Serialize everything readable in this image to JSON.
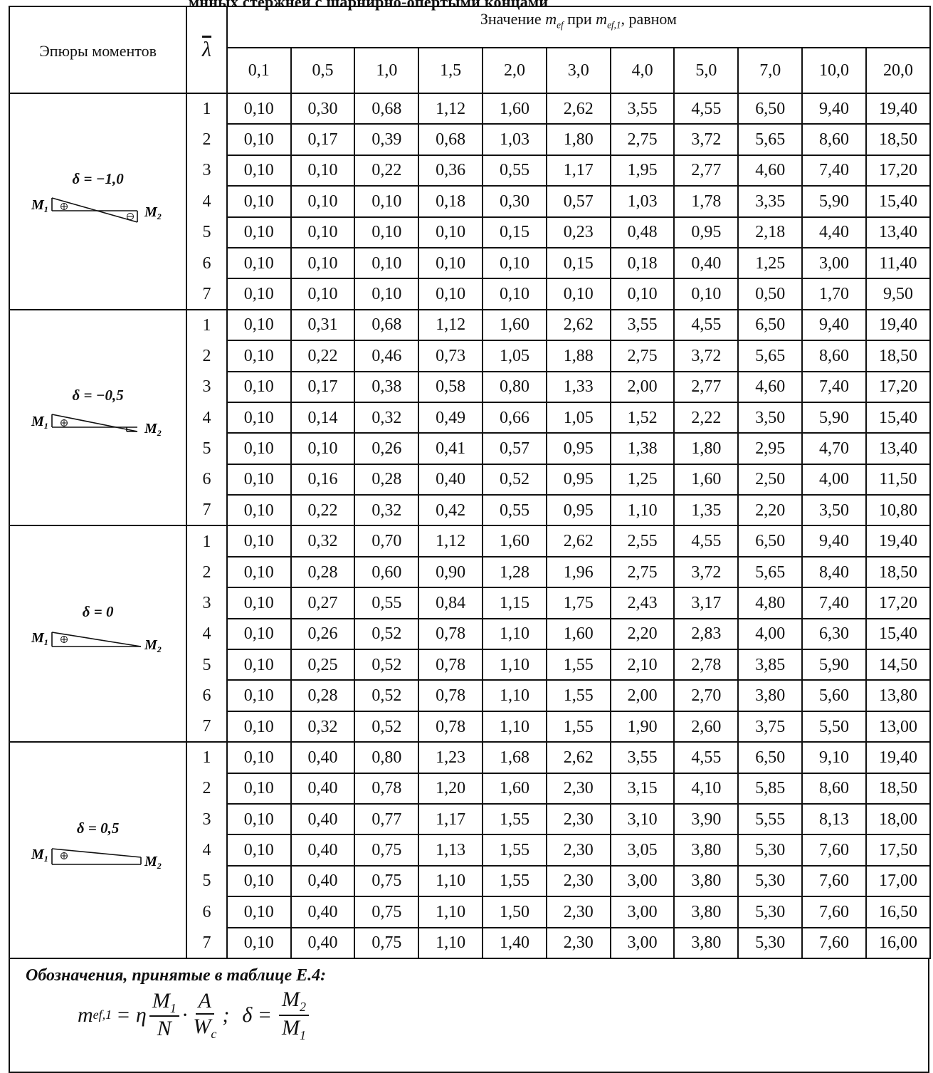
{
  "caption_fragment": "мнных  стержнеи с шарнирно-опертыми концами",
  "header": {
    "col_diagram": "Эпюры моментов",
    "col_lambda": "λ",
    "col_group_prefix": "Значение ",
    "col_group_mef": "m",
    "col_group_mef_sub": "ef",
    "col_group_mid": " при ",
    "col_group_mef1": "m",
    "col_group_mef1_sub": "ef,1",
    "col_group_suffix": ", равном",
    "mef1_values": [
      "0,1",
      "0,5",
      "1,0",
      "1,5",
      "2,0",
      "3,0",
      "4,0",
      "5,0",
      "7,0",
      "10,0",
      "20,0"
    ]
  },
  "groups": [
    {
      "delta_label": "δ = −1,0",
      "m1": "M",
      "m1_sub": "1",
      "m2": "M",
      "m2_sub": "2",
      "diagram_type": "double-triangle",
      "rows": [
        [
          "1",
          "0,10",
          "0,30",
          "0,68",
          "1,12",
          "1,60",
          "2,62",
          "3,55",
          "4,55",
          "6,50",
          "9,40",
          "19,40"
        ],
        [
          "2",
          "0,10",
          "0,17",
          "0,39",
          "0,68",
          "1,03",
          "1,80",
          "2,75",
          "3,72",
          "5,65",
          "8,60",
          "18,50"
        ],
        [
          "3",
          "0,10",
          "0,10",
          "0,22",
          "0,36",
          "0,55",
          "1,17",
          "1,95",
          "2,77",
          "4,60",
          "7,40",
          "17,20"
        ],
        [
          "4",
          "0,10",
          "0,10",
          "0,10",
          "0,18",
          "0,30",
          "0,57",
          "1,03",
          "1,78",
          "3,35",
          "5,90",
          "15,40"
        ],
        [
          "5",
          "0,10",
          "0,10",
          "0,10",
          "0,10",
          "0,15",
          "0,23",
          "0,48",
          "0,95",
          "2,18",
          "4,40",
          "13,40"
        ],
        [
          "6",
          "0,10",
          "0,10",
          "0,10",
          "0,10",
          "0,10",
          "0,15",
          "0,18",
          "0,40",
          "1,25",
          "3,00",
          "11,40"
        ],
        [
          "7",
          "0,10",
          "0,10",
          "0,10",
          "0,10",
          "0,10",
          "0,10",
          "0,10",
          "0,10",
          "0,50",
          "1,70",
          "9,50"
        ]
      ]
    },
    {
      "delta_label": "δ = −0,5",
      "m1": "M",
      "m1_sub": "1",
      "m2": "M",
      "m2_sub": "2",
      "diagram_type": "small-negative",
      "rows": [
        [
          "1",
          "0,10",
          "0,31",
          "0,68",
          "1,12",
          "1,60",
          "2,62",
          "3,55",
          "4,55",
          "6,50",
          "9,40",
          "19,40"
        ],
        [
          "2",
          "0,10",
          "0,22",
          "0,46",
          "0,73",
          "1,05",
          "1,88",
          "2,75",
          "3,72",
          "5,65",
          "8,60",
          "18,50"
        ],
        [
          "3",
          "0,10",
          "0,17",
          "0,38",
          "0,58",
          "0,80",
          "1,33",
          "2,00",
          "2,77",
          "4,60",
          "7,40",
          "17,20"
        ],
        [
          "4",
          "0,10",
          "0,14",
          "0,32",
          "0,49",
          "0,66",
          "1,05",
          "1,52",
          "2,22",
          "3,50",
          "5,90",
          "15,40"
        ],
        [
          "5",
          "0,10",
          "0,10",
          "0,26",
          "0,41",
          "0,57",
          "0,95",
          "1,38",
          "1,80",
          "2,95",
          "4,70",
          "13,40"
        ],
        [
          "6",
          "0,10",
          "0,16",
          "0,28",
          "0,40",
          "0,52",
          "0,95",
          "1,25",
          "1,60",
          "2,50",
          "4,00",
          "11,50"
        ],
        [
          "7",
          "0,10",
          "0,22",
          "0,32",
          "0,42",
          "0,55",
          "0,95",
          "1,10",
          "1,35",
          "2,20",
          "3,50",
          "10,80"
        ]
      ]
    },
    {
      "delta_label": "δ = 0",
      "m1": "M",
      "m1_sub": "1",
      "m2": "M",
      "m2_sub": "2",
      "diagram_type": "triangle",
      "rows": [
        [
          "1",
          "0,10",
          "0,32",
          "0,70",
          "1,12",
          "1,60",
          "2,62",
          "2,55",
          "4,55",
          "6,50",
          "9,40",
          "19,40"
        ],
        [
          "2",
          "0,10",
          "0,28",
          "0,60",
          "0,90",
          "1,28",
          "1,96",
          "2,75",
          "3,72",
          "5,65",
          "8,40",
          "18,50"
        ],
        [
          "3",
          "0,10",
          "0,27",
          "0,55",
          "0,84",
          "1,15",
          "1,75",
          "2,43",
          "3,17",
          "4,80",
          "7,40",
          "17,20"
        ],
        [
          "4",
          "0,10",
          "0,26",
          "0,52",
          "0,78",
          "1,10",
          "1,60",
          "2,20",
          "2,83",
          "4,00",
          "6,30",
          "15,40"
        ],
        [
          "5",
          "0,10",
          "0,25",
          "0,52",
          "0,78",
          "1,10",
          "1,55",
          "2,10",
          "2,78",
          "3,85",
          "5,90",
          "14,50"
        ],
        [
          "6",
          "0,10",
          "0,28",
          "0,52",
          "0,78",
          "1,10",
          "1,55",
          "2,00",
          "2,70",
          "3,80",
          "5,60",
          "13,80"
        ],
        [
          "7",
          "0,10",
          "0,32",
          "0,52",
          "0,78",
          "1,10",
          "1,55",
          "1,90",
          "2,60",
          "3,75",
          "5,50",
          "13,00"
        ]
      ]
    },
    {
      "delta_label": "δ = 0,5",
      "m1": "M",
      "m1_sub": "1",
      "m2": "M",
      "m2_sub": "2",
      "diagram_type": "trapezoid",
      "rows": [
        [
          "1",
          "0,10",
          "0,40",
          "0,80",
          "1,23",
          "1,68",
          "2,62",
          "3,55",
          "4,55",
          "6,50",
          "9,10",
          "19,40"
        ],
        [
          "2",
          "0,10",
          "0,40",
          "0,78",
          "1,20",
          "1,60",
          "2,30",
          "3,15",
          "4,10",
          "5,85",
          "8,60",
          "18,50"
        ],
        [
          "3",
          "0,10",
          "0,40",
          "0,77",
          "1,17",
          "1,55",
          "2,30",
          "3,10",
          "3,90",
          "5,55",
          "8,13",
          "18,00"
        ],
        [
          "4",
          "0,10",
          "0,40",
          "0,75",
          "1,13",
          "1,55",
          "2,30",
          "3,05",
          "3,80",
          "5,30",
          "7,60",
          "17,50"
        ],
        [
          "5",
          "0,10",
          "0,40",
          "0,75",
          "1,10",
          "1,55",
          "2,30",
          "3,00",
          "3,80",
          "5,30",
          "7,60",
          "17,00"
        ],
        [
          "6",
          "0,10",
          "0,40",
          "0,75",
          "1,10",
          "1,50",
          "2,30",
          "3,00",
          "3,80",
          "5,30",
          "7,60",
          "16,50"
        ],
        [
          "7",
          "0,10",
          "0,40",
          "0,75",
          "1,10",
          "1,40",
          "2,30",
          "3,00",
          "3,80",
          "5,30",
          "7,60",
          "16,00"
        ]
      ]
    }
  ],
  "note": {
    "title": "Обозначения, принятые в таблице Е.4:",
    "lhs": "m",
    "lhs_sub": "ef,1",
    "eq": " = η",
    "f1_num": "M",
    "f1_num_sub": "1",
    "f1_den": "N",
    "dot": "·",
    "f2_num": "A",
    "f2_den": "W",
    "f2_den_sub": "c",
    "sep": ";",
    "delta": "δ =",
    "f3_num": "M",
    "f3_num_sub": "2",
    "f3_den": "M",
    "f3_den_sub": "1"
  }
}
